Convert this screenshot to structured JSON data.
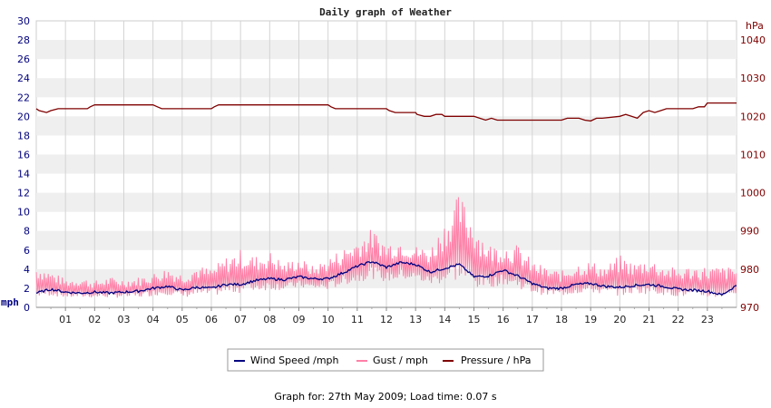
{
  "chart_data": {
    "type": "line",
    "title": "Daily graph of Weather",
    "x_ticks": [
      "01",
      "02",
      "03",
      "04",
      "05",
      "06",
      "07",
      "08",
      "09",
      "10",
      "11",
      "12",
      "13",
      "14",
      "15",
      "16",
      "17",
      "18",
      "19",
      "20",
      "21",
      "22",
      "23"
    ],
    "x_range_hours": [
      0,
      24
    ],
    "y_left": {
      "unit": "mph",
      "min": 0,
      "max": 30,
      "ticks": [
        0,
        2,
        4,
        6,
        8,
        10,
        12,
        14,
        16,
        18,
        20,
        22,
        24,
        26,
        28,
        30
      ]
    },
    "y_right": {
      "unit": "hPa",
      "min": 970,
      "max": 1045,
      "ticks": [
        970,
        980,
        990,
        1000,
        1010,
        1020,
        1030,
        1040
      ]
    },
    "grid": "on",
    "legend_position": "bottom",
    "series": [
      {
        "name": "Wind Speed /mph",
        "axis": "left",
        "color": "#000080",
        "x": [
          0,
          0.5,
          1,
          1.5,
          2,
          2.5,
          3,
          3.5,
          4,
          4.5,
          5,
          5.5,
          6,
          6.5,
          7,
          7.5,
          8,
          8.5,
          9,
          9.5,
          10,
          10.5,
          11,
          11.5,
          12,
          12.5,
          13,
          13.5,
          14,
          14.5,
          15,
          15.5,
          16,
          16.5,
          17,
          17.5,
          18,
          18.5,
          19,
          19.5,
          20,
          20.5,
          21,
          21.5,
          22,
          22.5,
          23,
          23.5,
          24
        ],
        "values": [
          1.5,
          1.9,
          1.6,
          1.5,
          1.6,
          1.5,
          1.6,
          1.7,
          2.0,
          2.2,
          1.8,
          2.1,
          2.0,
          2.4,
          2.4,
          2.8,
          3.0,
          2.9,
          3.2,
          3.0,
          3.0,
          3.6,
          4.3,
          4.8,
          4.2,
          4.7,
          4.5,
          3.7,
          4.1,
          4.5,
          3.2,
          3.3,
          3.9,
          3.3,
          2.5,
          2.0,
          2.0,
          2.4,
          2.5,
          2.2,
          2.1,
          2.3,
          2.4,
          2.2,
          1.9,
          1.8,
          1.7,
          1.3,
          2.3
        ]
      },
      {
        "name": "Gust / mph",
        "axis": "left",
        "color": "#ff80a8",
        "x": [
          0,
          0.5,
          1,
          1.5,
          2,
          2.5,
          3,
          3.5,
          4,
          4.5,
          5,
          5.5,
          6,
          6.5,
          7,
          7.5,
          8,
          8.5,
          9,
          9.5,
          10,
          10.5,
          11,
          11.5,
          12,
          12.5,
          13,
          13.5,
          14,
          14.5,
          15,
          15.5,
          16,
          16.5,
          17,
          17.5,
          18,
          18.5,
          19,
          19.5,
          20,
          20.5,
          21,
          21.5,
          22,
          22.5,
          23,
          23.5,
          24
        ],
        "min": [
          1.0,
          1.2,
          1.0,
          1.0,
          1.0,
          1.0,
          1.0,
          1.0,
          1.2,
          1.3,
          1.0,
          1.2,
          1.2,
          1.4,
          1.5,
          1.7,
          1.8,
          1.8,
          2.0,
          1.9,
          1.8,
          2.3,
          2.6,
          3.0,
          2.6,
          2.9,
          2.8,
          2.3,
          2.5,
          2.8,
          2.0,
          2.0,
          2.4,
          2.0,
          1.5,
          1.2,
          1.2,
          1.4,
          1.5,
          1.3,
          1.2,
          1.4,
          1.4,
          1.3,
          1.1,
          1.0,
          1.0,
          1.0,
          1.4
        ],
        "max": [
          4.5,
          3.8,
          3.0,
          3.2,
          2.8,
          3.2,
          3.0,
          3.2,
          3.6,
          4.2,
          3.6,
          4.4,
          4.1,
          5.3,
          6.1,
          5.4,
          5.9,
          4.7,
          5.3,
          4.3,
          5.3,
          6.2,
          7.2,
          8.3,
          6.9,
          7.3,
          6.5,
          6.3,
          9.1,
          12.0,
          9.2,
          6.7,
          6.6,
          6.6,
          4.9,
          4.2,
          3.8,
          4.7,
          4.9,
          4.3,
          5.5,
          4.7,
          5.2,
          4.4,
          4.1,
          4.4,
          4.3,
          4.3,
          4.2
        ]
      },
      {
        "name": "Pressure / hPa",
        "axis": "right",
        "color": "#800000",
        "x": [
          0,
          0.1,
          0.35,
          0.5,
          0.75,
          1,
          1.5,
          1.75,
          1.85,
          2,
          3,
          4,
          4.15,
          4.3,
          5,
          6,
          6.1,
          6.25,
          7,
          8,
          9,
          10,
          10.1,
          10.25,
          11,
          12,
          12.1,
          12.3,
          13,
          13.05,
          13.3,
          13.5,
          13.7,
          13.9,
          14,
          14.5,
          15,
          15.2,
          15.4,
          15.6,
          15.8,
          16,
          17,
          18,
          18.2,
          18.6,
          18.8,
          19,
          19.2,
          19.4,
          20,
          20.2,
          20.4,
          20.6,
          20.8,
          21,
          21.2,
          21.4,
          21.6,
          22,
          22.5,
          22.7,
          22.9,
          23,
          24
        ],
        "values": [
          1022,
          1021.5,
          1021,
          1021.5,
          1022,
          1022,
          1022,
          1022,
          1022.5,
          1023,
          1023,
          1023,
          1022.5,
          1022,
          1022,
          1022,
          1022.5,
          1023,
          1023,
          1023,
          1023,
          1023,
          1022.5,
          1022,
          1022,
          1022,
          1021.5,
          1021,
          1021,
          1020.5,
          1020,
          1020,
          1020.5,
          1020.5,
          1020,
          1020,
          1020,
          1019.5,
          1019,
          1019.5,
          1019,
          1019,
          1019,
          1019,
          1019.5,
          1019.5,
          1019,
          1018.8,
          1019.5,
          1019.5,
          1020,
          1020.5,
          1020,
          1019.5,
          1021,
          1021.5,
          1021,
          1021.5,
          1022,
          1022,
          1022,
          1022.5,
          1022.5,
          1023.5,
          1023.5
        ]
      }
    ]
  },
  "footer": "Graph for: 27th May 2009; Load time: 0.07 s"
}
